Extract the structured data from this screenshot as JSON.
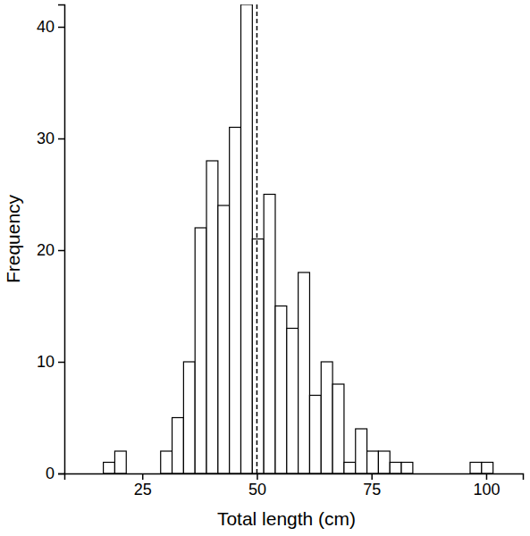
{
  "chart_data": {
    "type": "histogram",
    "x_label": "Total length (cm)",
    "y_label": "Frequency",
    "bins": [
      16.5,
      19,
      21.5,
      24,
      26.5,
      29,
      31.5,
      34,
      36.5,
      39,
      41.5,
      44,
      46.5,
      49,
      51.5,
      54,
      56.5,
      59,
      61.5,
      64,
      66.5,
      69,
      71.5,
      74,
      76.5,
      79,
      81.5,
      84,
      86.5,
      89,
      91.5,
      94,
      96.5,
      99,
      101.5
    ],
    "values": [
      1,
      2,
      0,
      0,
      0,
      2,
      5,
      10,
      22,
      28,
      24,
      31,
      42,
      21,
      25,
      15,
      13,
      18,
      7,
      10,
      8,
      1,
      4,
      2,
      2,
      1,
      1,
      0,
      0,
      0,
      0,
      0,
      1,
      1
    ],
    "color": "#ffffff",
    "xlim": [
      8,
      108
    ],
    "xticks": [
      25,
      50,
      75,
      100
    ],
    "ylim": [
      0,
      42
    ],
    "yticks": [
      0,
      10,
      20,
      30,
      40
    ],
    "grid": false,
    "vline": {
      "value": 50,
      "line_style": "dashed"
    }
  }
}
